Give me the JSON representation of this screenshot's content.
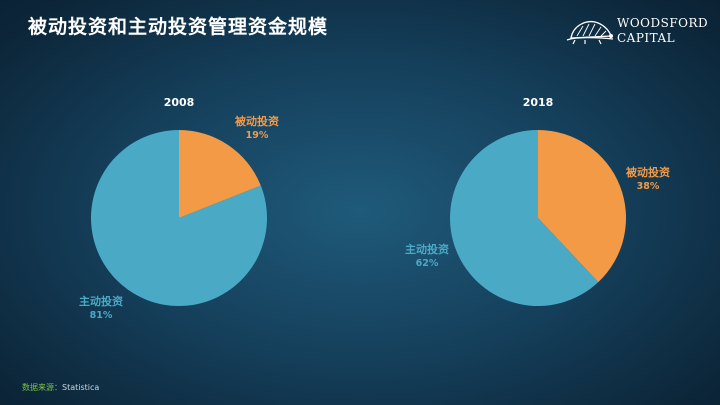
{
  "header": {
    "title": "被动投资和主动投资管理资金规模",
    "logo_line1": "WOODSFORD",
    "logo_line2": "CAPITAL"
  },
  "colors": {
    "passive": "#f39a47",
    "active": "#4aaac6",
    "background": "#15405c"
  },
  "chart_data": [
    {
      "type": "pie",
      "title": "2008",
      "slices": [
        {
          "label": "被动投资",
          "value": 19,
          "display": "19%",
          "color": "#f39a47"
        },
        {
          "label": "主动投资",
          "value": 81,
          "display": "81%",
          "color": "#4aaac6"
        }
      ]
    },
    {
      "type": "pie",
      "title": "2018",
      "slices": [
        {
          "label": "被动投资",
          "value": 38,
          "display": "38%",
          "color": "#f39a47"
        },
        {
          "label": "主动投资",
          "value": 62,
          "display": "62%",
          "color": "#4aaac6"
        }
      ]
    }
  ],
  "footer": {
    "source_label": "数据来源：",
    "source_value": "Statistica"
  }
}
